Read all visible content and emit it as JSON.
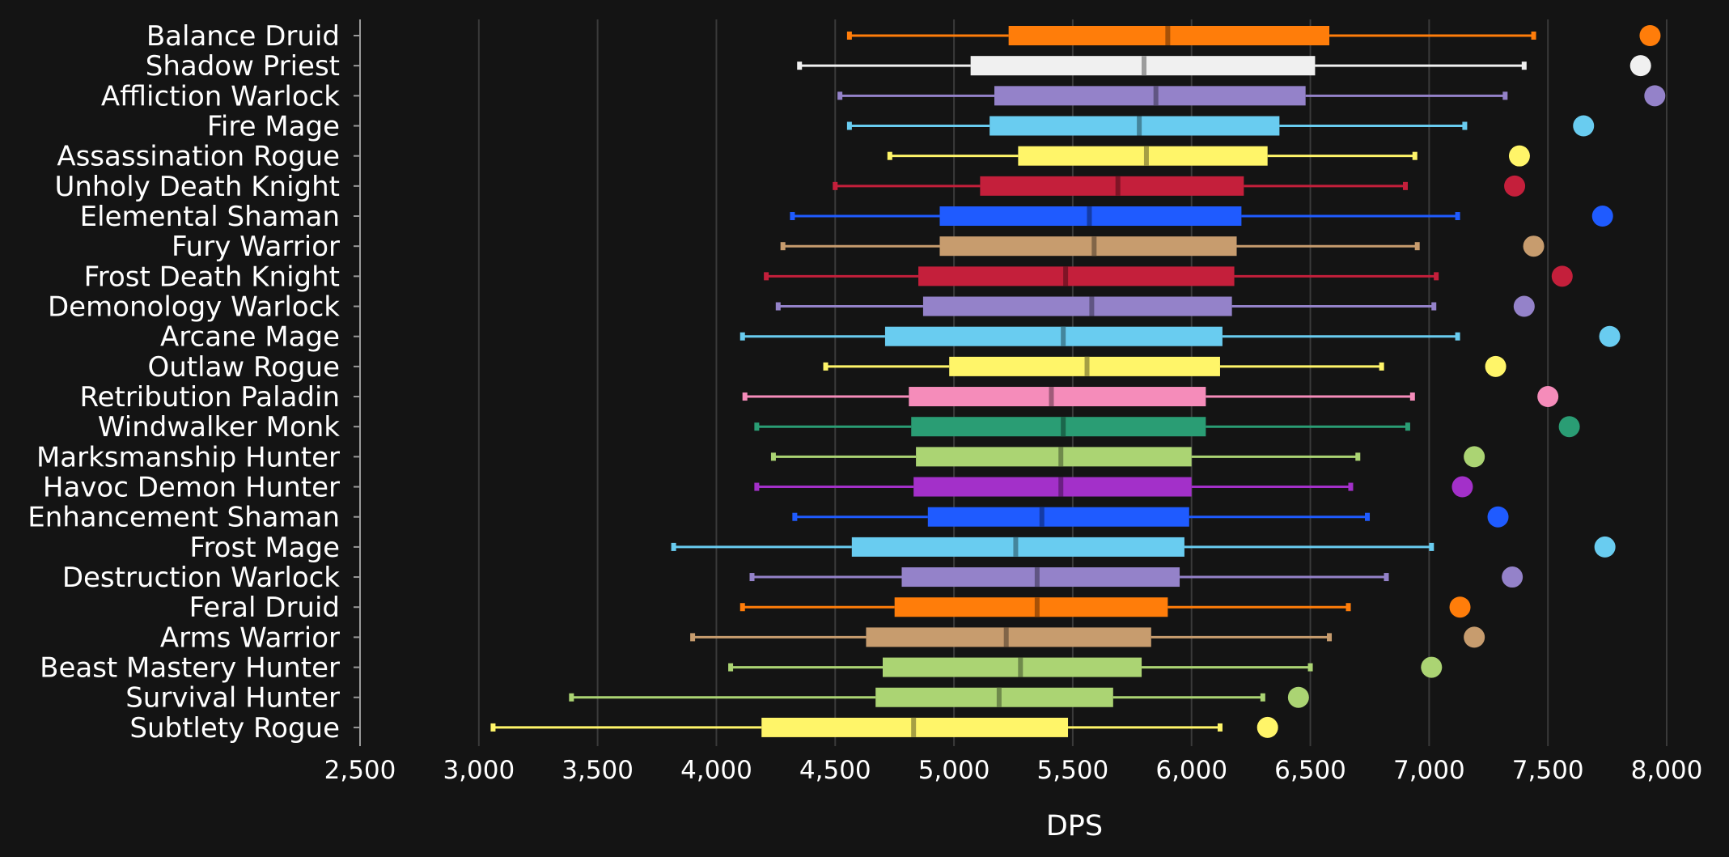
{
  "chart_data": {
    "type": "box",
    "xlabel": "DPS",
    "xlim": [
      2500,
      8000
    ],
    "xticks": [
      2500,
      3000,
      3500,
      4000,
      4500,
      5000,
      5500,
      6000,
      6500,
      7000,
      7500,
      8000
    ],
    "xtick_labels": [
      "2,500",
      "3,000",
      "3,500",
      "4,000",
      "4,500",
      "5,000",
      "5,500",
      "6,000",
      "6,500",
      "7,000",
      "7,500",
      "8,000"
    ],
    "grid": "vertical",
    "series": [
      {
        "name": "Balance Druid",
        "color": "#ff7d0a",
        "whisker_low": 4560,
        "q1": 5230,
        "median": 5900,
        "q3": 6580,
        "whisker_high": 7440,
        "max": 7930
      },
      {
        "name": "Shadow Priest",
        "color": "#f0f0f0",
        "whisker_low": 4350,
        "q1": 5070,
        "median": 5800,
        "q3": 6520,
        "whisker_high": 7400,
        "max": 7890
      },
      {
        "name": "Affliction Warlock",
        "color": "#9482c9",
        "whisker_low": 4520,
        "q1": 5170,
        "median": 5850,
        "q3": 6480,
        "whisker_high": 7320,
        "max": 7950
      },
      {
        "name": "Fire Mage",
        "color": "#69ccf0",
        "whisker_low": 4560,
        "q1": 5150,
        "median": 5780,
        "q3": 6370,
        "whisker_high": 7150,
        "max": 7650
      },
      {
        "name": "Assassination Rogue",
        "color": "#fff569",
        "whisker_low": 4730,
        "q1": 5270,
        "median": 5810,
        "q3": 6320,
        "whisker_high": 6940,
        "max": 7380
      },
      {
        "name": "Unholy Death Knight",
        "color": "#c41f3b",
        "whisker_low": 4500,
        "q1": 5110,
        "median": 5690,
        "q3": 6220,
        "whisker_high": 6900,
        "max": 7360
      },
      {
        "name": "Elemental Shaman",
        "color": "#1f5bff",
        "whisker_low": 4320,
        "q1": 4940,
        "median": 5570,
        "q3": 6210,
        "whisker_high": 7120,
        "max": 7730
      },
      {
        "name": "Fury Warrior",
        "color": "#c79c6e",
        "whisker_low": 4280,
        "q1": 4940,
        "median": 5590,
        "q3": 6190,
        "whisker_high": 6950,
        "max": 7440
      },
      {
        "name": "Frost Death Knight",
        "color": "#c41f3b",
        "whisker_low": 4210,
        "q1": 4850,
        "median": 5470,
        "q3": 6180,
        "whisker_high": 7030,
        "max": 7560
      },
      {
        "name": "Demonology Warlock",
        "color": "#9482c9",
        "whisker_low": 4260,
        "q1": 4870,
        "median": 5580,
        "q3": 6170,
        "whisker_high": 7020,
        "max": 7400
      },
      {
        "name": "Arcane Mage",
        "color": "#69ccf0",
        "whisker_low": 4110,
        "q1": 4710,
        "median": 5460,
        "q3": 6130,
        "whisker_high": 7120,
        "max": 7760
      },
      {
        "name": "Outlaw Rogue",
        "color": "#fff569",
        "whisker_low": 4460,
        "q1": 4980,
        "median": 5560,
        "q3": 6120,
        "whisker_high": 6800,
        "max": 7280
      },
      {
        "name": "Retribution Paladin",
        "color": "#f58cba",
        "whisker_low": 4120,
        "q1": 4810,
        "median": 5410,
        "q3": 6060,
        "whisker_high": 6930,
        "max": 7500
      },
      {
        "name": "Windwalker Monk",
        "color": "#2a9d74",
        "whisker_low": 4170,
        "q1": 4820,
        "median": 5460,
        "q3": 6060,
        "whisker_high": 6910,
        "max": 7590
      },
      {
        "name": "Marksmanship Hunter",
        "color": "#abd473",
        "whisker_low": 4240,
        "q1": 4840,
        "median": 5450,
        "q3": 6000,
        "whisker_high": 6700,
        "max": 7190
      },
      {
        "name": "Havoc Demon Hunter",
        "color": "#a330c9",
        "whisker_low": 4170,
        "q1": 4830,
        "median": 5450,
        "q3": 6000,
        "whisker_high": 6670,
        "max": 7140
      },
      {
        "name": "Enhancement Shaman",
        "color": "#1f5bff",
        "whisker_low": 4330,
        "q1": 4890,
        "median": 5370,
        "q3": 5990,
        "whisker_high": 6740,
        "max": 7290
      },
      {
        "name": "Frost Mage",
        "color": "#69ccf0",
        "whisker_low": 3820,
        "q1": 4570,
        "median": 5260,
        "q3": 5970,
        "whisker_high": 7010,
        "max": 7740
      },
      {
        "name": "Destruction Warlock",
        "color": "#9482c9",
        "whisker_low": 4150,
        "q1": 4780,
        "median": 5350,
        "q3": 5950,
        "whisker_high": 6820,
        "max": 7350
      },
      {
        "name": "Feral Druid",
        "color": "#ff7d0a",
        "whisker_low": 4110,
        "q1": 4750,
        "median": 5350,
        "q3": 5900,
        "whisker_high": 6660,
        "max": 7130
      },
      {
        "name": "Arms Warrior",
        "color": "#c79c6e",
        "whisker_low": 3900,
        "q1": 4630,
        "median": 5220,
        "q3": 5830,
        "whisker_high": 6580,
        "max": 7190
      },
      {
        "name": "Beast Mastery Hunter",
        "color": "#abd473",
        "whisker_low": 4060,
        "q1": 4700,
        "median": 5280,
        "q3": 5790,
        "whisker_high": 6500,
        "max": 7010
      },
      {
        "name": "Survival Hunter",
        "color": "#abd473",
        "whisker_low": 3390,
        "q1": 4670,
        "median": 5190,
        "q3": 5670,
        "whisker_high": 6300,
        "max": 6450
      },
      {
        "name": "Subtlety Rogue",
        "color": "#fff569",
        "whisker_low": 3060,
        "q1": 4190,
        "median": 4830,
        "q3": 5480,
        "whisker_high": 6120,
        "max": 6320
      }
    ]
  }
}
